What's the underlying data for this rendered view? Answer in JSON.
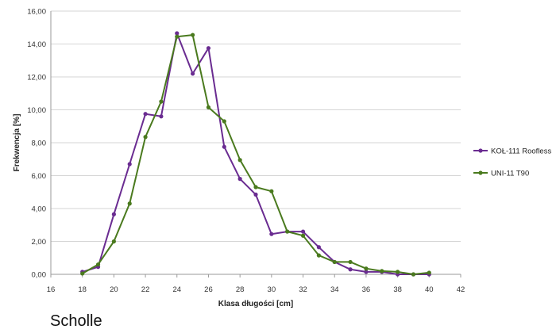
{
  "chart_data": {
    "type": "line",
    "title": "",
    "xlabel": "Klasa długości [cm]",
    "ylabel": "Frekwencja [%]",
    "xlim": [
      16,
      42
    ],
    "ylim": [
      0,
      16
    ],
    "xticks": [
      16,
      18,
      20,
      22,
      24,
      26,
      28,
      30,
      32,
      34,
      36,
      38,
      40,
      42
    ],
    "yticks": [
      0,
      2,
      4,
      6,
      8,
      10,
      12,
      14,
      16
    ],
    "xtick_labels": [
      "16",
      "18",
      "20",
      "22",
      "24",
      "26",
      "28",
      "30",
      "32",
      "34",
      "36",
      "38",
      "40",
      "42"
    ],
    "ytick_labels": [
      "0,00",
      "2,00",
      "4,00",
      "6,00",
      "8,00",
      "10,00",
      "12,00",
      "14,00",
      "16,00"
    ],
    "grid": "horizontal",
    "legend_position": "right",
    "series": [
      {
        "name": "KOŁ-111 Roofless",
        "color": "#6a2c91",
        "x": [
          18,
          19,
          20,
          21,
          22,
          23,
          24,
          25,
          26,
          27,
          28,
          29,
          30,
          31,
          32,
          33,
          34,
          35,
          36,
          37,
          38,
          39,
          40
        ],
        "y": [
          0.15,
          0.45,
          3.65,
          6.7,
          9.75,
          9.6,
          14.65,
          12.2,
          13.75,
          7.75,
          5.8,
          4.85,
          2.45,
          2.6,
          2.6,
          1.65,
          0.75,
          0.3,
          0.15,
          0.15,
          0.0,
          0.0,
          0.0
        ]
      },
      {
        "name": "UNI-11 T90",
        "color": "#4a7a1e",
        "x": [
          18,
          19,
          20,
          21,
          22,
          23,
          24,
          25,
          26,
          27,
          28,
          29,
          30,
          31,
          32,
          33,
          34,
          35,
          36,
          37,
          38,
          39,
          40
        ],
        "y": [
          0.05,
          0.6,
          2.0,
          4.3,
          8.35,
          10.5,
          14.45,
          14.55,
          10.15,
          9.3,
          6.95,
          5.3,
          5.05,
          2.6,
          2.35,
          1.15,
          0.75,
          0.75,
          0.35,
          0.2,
          0.15,
          0.0,
          0.1
        ]
      }
    ]
  },
  "caption": "Scholle"
}
